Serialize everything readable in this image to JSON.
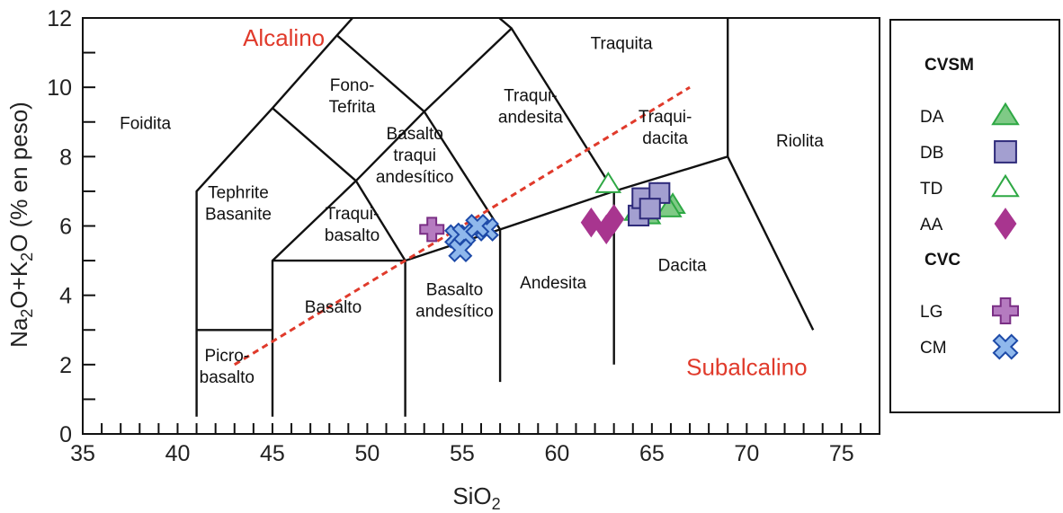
{
  "chart_data": {
    "type": "scatter",
    "title": "",
    "xlabel_main": "SiO",
    "xlabel_sub": "2",
    "ylabel": {
      "p1": "Na",
      "s1": "2",
      "p2": "O+K",
      "s2": "2",
      "p3": "O (% en peso)"
    },
    "xlim": [
      35,
      77
    ],
    "ylim": [
      0,
      12
    ],
    "xticks": [
      35,
      40,
      45,
      50,
      55,
      60,
      65,
      70,
      75
    ],
    "xticks_labels": [
      "35",
      "40",
      "45",
      "50",
      "55",
      "60",
      "65",
      "70",
      "75"
    ],
    "yticks": [
      0,
      2,
      4,
      6,
      8,
      10,
      12
    ],
    "yticks_labels": [
      "0",
      "2",
      "4",
      "6",
      "8",
      "10",
      "12"
    ],
    "grid": false,
    "field_boundaries": [
      [
        [
          41,
          0.5
        ],
        [
          41,
          7
        ],
        [
          45,
          9.4
        ],
        [
          48.4,
          11.5
        ],
        [
          52.5,
          14
        ]
      ],
      [
        [
          41,
          3
        ],
        [
          45,
          3
        ]
      ],
      [
        [
          45,
          0.5
        ],
        [
          45,
          5
        ],
        [
          49.4,
          7.3
        ],
        [
          53,
          9.3
        ],
        [
          57.6,
          11.7
        ]
      ],
      [
        [
          45,
          5
        ],
        [
          52,
          5
        ]
      ],
      [
        [
          52,
          0.5
        ],
        [
          52,
          5
        ],
        [
          57,
          5.9
        ],
        [
          63,
          7
        ],
        [
          69,
          8
        ]
      ],
      [
        [
          57,
          1.5
        ],
        [
          57,
          5.9
        ]
      ],
      [
        [
          63,
          2
        ],
        [
          63,
          7
        ]
      ],
      [
        [
          69,
          8
        ],
        [
          69,
          13
        ]
      ],
      [
        [
          69,
          8
        ],
        [
          73.5,
          3
        ]
      ],
      [
        [
          52,
          5
        ],
        [
          49.4,
          7.3
        ],
        [
          45,
          9.4
        ]
      ],
      [
        [
          57,
          5.9
        ],
        [
          53,
          9.3
        ],
        [
          48.4,
          11.5
        ]
      ],
      [
        [
          63,
          7
        ],
        [
          57.6,
          11.7
        ],
        [
          50.3,
          15.1
        ]
      ]
    ],
    "divide_line": {
      "points": [
        [
          43,
          2
        ],
        [
          67,
          10
        ]
      ],
      "color": "#e03a2b",
      "style": "dashed"
    },
    "field_labels": [
      {
        "lines": [
          "Foidita"
        ],
        "x": 38.3,
        "y": 8.8
      },
      {
        "lines": [
          "Tephrite",
          "Basanite"
        ],
        "x": 43.2,
        "y": 6.8
      },
      {
        "lines": [
          "Picro-",
          "basalto"
        ],
        "x": 42.6,
        "y": 2.1
      },
      {
        "lines": [
          "Basalto"
        ],
        "x": 48.2,
        "y": 3.5
      },
      {
        "lines": [
          "Traqui-",
          "basalto"
        ],
        "x": 49.2,
        "y": 6.2
      },
      {
        "lines": [
          "Fono-",
          "Tefrita"
        ],
        "x": 49.2,
        "y": 9.9
      },
      {
        "lines": [
          "Basalto",
          "traqui",
          "andesítico"
        ],
        "x": 52.5,
        "y": 8.5
      },
      {
        "lines": [
          "Basalto",
          "andesítico"
        ],
        "x": 54.6,
        "y": 4.0
      },
      {
        "lines": [
          "Andesita"
        ],
        "x": 59.8,
        "y": 4.2
      },
      {
        "lines": [
          "Traqui-",
          "andesita"
        ],
        "x": 58.6,
        "y": 9.6
      },
      {
        "lines": [
          "Traquita"
        ],
        "x": 63.4,
        "y": 11.1
      },
      {
        "lines": [
          "Traqui-",
          "dacita"
        ],
        "x": 65.7,
        "y": 9.0
      },
      {
        "lines": [
          "Dacita"
        ],
        "x": 66.6,
        "y": 4.7
      },
      {
        "lines": [
          "Riolita"
        ],
        "x": 72.8,
        "y": 8.3
      }
    ],
    "region_labels": [
      {
        "text": "Alcalino",
        "x": 45.6,
        "y": 11.2
      },
      {
        "text": "Subalcalino",
        "x": 70.0,
        "y": 1.7
      }
    ],
    "series": [
      {
        "name": "DA",
        "marker": "triangle",
        "filled": true,
        "color": "#2ea844",
        "fill": "#7fca86",
        "points": [
          [
            64.2,
            6.4
          ],
          [
            64.6,
            6.7
          ],
          [
            65.3,
            6.9
          ],
          [
            66.1,
            6.6
          ],
          [
            64.8,
            6.3
          ],
          [
            65.9,
            6.5
          ]
        ]
      },
      {
        "name": "DB",
        "marker": "square",
        "filled": true,
        "color": "#2e2a7a",
        "fill": "#a39fd0",
        "points": [
          [
            64.3,
            6.3
          ],
          [
            64.5,
            6.8
          ],
          [
            65.4,
            6.95
          ],
          [
            64.9,
            6.5
          ]
        ]
      },
      {
        "name": "TD",
        "marker": "triangle",
        "filled": false,
        "color": "#2ea844",
        "fill": "#ffffff",
        "points": [
          [
            62.7,
            7.2
          ]
        ]
      },
      {
        "name": "AA",
        "marker": "diamond",
        "filled": true,
        "color": "#a8358f",
        "fill": "#a8358f",
        "points": [
          [
            61.8,
            6.1
          ],
          [
            62.6,
            5.9
          ],
          [
            63.0,
            6.2
          ]
        ]
      },
      {
        "name": "LG",
        "marker": "cross",
        "filled": true,
        "color": "#7a2f85",
        "fill": "#b57bc0",
        "points": [
          [
            53.4,
            5.9
          ]
        ]
      },
      {
        "name": "CM",
        "marker": "x",
        "filled": true,
        "color": "#1d4aa8",
        "fill": "#8fb8ec",
        "points": [
          [
            54.7,
            5.7
          ],
          [
            55.1,
            5.75
          ],
          [
            54.9,
            5.3
          ],
          [
            56.3,
            5.9
          ],
          [
            55.8,
            6.0
          ]
        ]
      }
    ]
  },
  "legend": {
    "groups": [
      {
        "title": "CVSM",
        "items": [
          {
            "label": "DA",
            "marker": "triangle",
            "filled": true
          },
          {
            "label": "DB",
            "marker": "square",
            "filled": true
          },
          {
            "label": "TD",
            "marker": "triangle",
            "filled": false
          },
          {
            "label": "AA",
            "marker": "diamond",
            "filled": true
          }
        ]
      },
      {
        "title": "CVC",
        "items": [
          {
            "label": "LG",
            "marker": "cross",
            "filled": true
          },
          {
            "label": "CM",
            "marker": "x",
            "filled": true
          }
        ]
      }
    ]
  }
}
